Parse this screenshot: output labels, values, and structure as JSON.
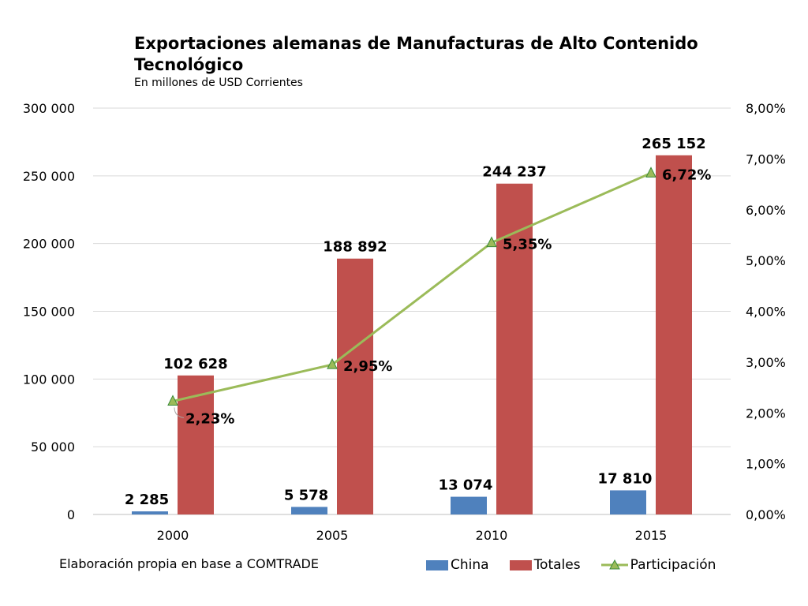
{
  "chart_data": {
    "type": "bar",
    "title": "Exportaciones alemanas de Manufacturas de Alto Contenido Tecnológico",
    "subtitle": "En millones de USD Corrientes",
    "categories": [
      "2000",
      "2005",
      "2010",
      "2015"
    ],
    "series": [
      {
        "name": "China",
        "kind": "bar",
        "axis": "left",
        "color": "#4f81bd",
        "values": [
          2285,
          5578,
          13074,
          17810
        ],
        "labels": [
          "2 285",
          "5 578",
          "13 074",
          "17 810"
        ]
      },
      {
        "name": "Totales",
        "kind": "bar",
        "axis": "left",
        "color": "#c0504d",
        "values": [
          102628,
          188892,
          244237,
          265152
        ],
        "labels": [
          "102 628",
          "188 892",
          "244 237",
          "265 152"
        ]
      },
      {
        "name": "Participación",
        "kind": "line",
        "axis": "right",
        "color": "#9bbb59",
        "values": [
          2.23,
          2.95,
          5.35,
          6.72
        ],
        "labels": [
          "2,23%",
          "2,95%",
          "5,35%",
          "6,72%"
        ]
      }
    ],
    "y_left": {
      "min": 0,
      "max": 300000,
      "ticks": [
        0,
        50000,
        100000,
        150000,
        200000,
        250000,
        300000
      ],
      "tick_labels": [
        "0",
        "50 000",
        "100 000",
        "150 000",
        "200 000",
        "250 000",
        "300 000"
      ]
    },
    "y_right": {
      "min": 0,
      "max": 8,
      "ticks": [
        0,
        1,
        2,
        3,
        4,
        5,
        6,
        7,
        8
      ],
      "tick_labels": [
        "0,00%",
        "1,00%",
        "2,00%",
        "3,00%",
        "4,00%",
        "5,00%",
        "6,00%",
        "7,00%",
        "8,00%"
      ]
    },
    "grid": true,
    "legend_position": "bottom-right"
  },
  "source_note": "Elaboración propia en base a COMTRADE"
}
